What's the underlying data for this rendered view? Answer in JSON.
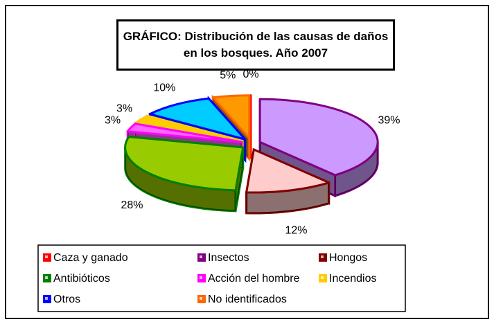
{
  "chart_data": {
    "type": "pie",
    "title": "GRÁFICO: Distribución de las causas de daños en los bosques. Año 2007",
    "categories": [
      "Caza y ganado",
      "Insectos",
      "Hongos",
      "Antibióticos",
      "Acción del hombre",
      "Incendios",
      "Otros",
      "No identificados"
    ],
    "values": [
      0,
      39,
      12,
      28,
      3,
      3,
      10,
      5
    ],
    "value_labels": [
      "0%",
      "39%",
      "12%",
      "28%",
      "3%",
      "3%",
      "10%",
      "5%"
    ],
    "colors": [
      "#ff0000",
      "#cc99ff",
      "#ffcccc",
      "#99cc00",
      "#ff66ff",
      "#ffcc00",
      "#00ccff",
      "#ff9900"
    ],
    "edgecolors": [
      "#ff0000",
      "#800080",
      "#800000",
      "#008000",
      "#ff00ff",
      "#ffcc00",
      "#0000ff",
      "#ff6600"
    ],
    "legend": "bottom"
  }
}
